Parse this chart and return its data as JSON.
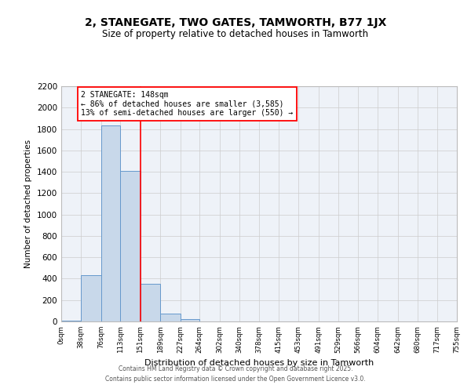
{
  "title": "2, STANEGATE, TWO GATES, TAMWORTH, B77 1JX",
  "subtitle": "Size of property relative to detached houses in Tamworth",
  "xlabel": "Distribution of detached houses by size in Tamworth",
  "ylabel": "Number of detached properties",
  "bar_color": "#c8d8ea",
  "bar_edge_color": "#6699cc",
  "background_color": "#eef2f8",
  "grid_color": "#cccccc",
  "bin_edges": [
    0,
    38,
    76,
    113,
    151,
    189,
    227,
    264,
    302,
    340,
    378,
    415,
    453,
    491,
    529,
    566,
    604,
    642,
    680,
    717,
    755
  ],
  "bin_labels": [
    "0sqm",
    "38sqm",
    "76sqm",
    "113sqm",
    "151sqm",
    "189sqm",
    "227sqm",
    "264sqm",
    "302sqm",
    "340sqm",
    "378sqm",
    "415sqm",
    "453sqm",
    "491sqm",
    "529sqm",
    "566sqm",
    "604sqm",
    "642sqm",
    "680sqm",
    "717sqm",
    "755sqm"
  ],
  "counts": [
    10,
    430,
    1830,
    1410,
    355,
    75,
    25,
    0,
    0,
    0,
    0,
    0,
    0,
    0,
    0,
    0,
    0,
    0,
    0,
    0
  ],
  "vline_x": 151,
  "annotation_title": "2 STANEGATE: 148sqm",
  "annotation_line1": "← 86% of detached houses are smaller (3,585)",
  "annotation_line2": "13% of semi-detached houses are larger (550) →",
  "ylim": [
    0,
    2200
  ],
  "yticks": [
    0,
    200,
    400,
    600,
    800,
    1000,
    1200,
    1400,
    1600,
    1800,
    2000,
    2200
  ],
  "footer1": "Contains HM Land Registry data © Crown copyright and database right 2025.",
  "footer2": "Contains public sector information licensed under the Open Government Licence v3.0."
}
